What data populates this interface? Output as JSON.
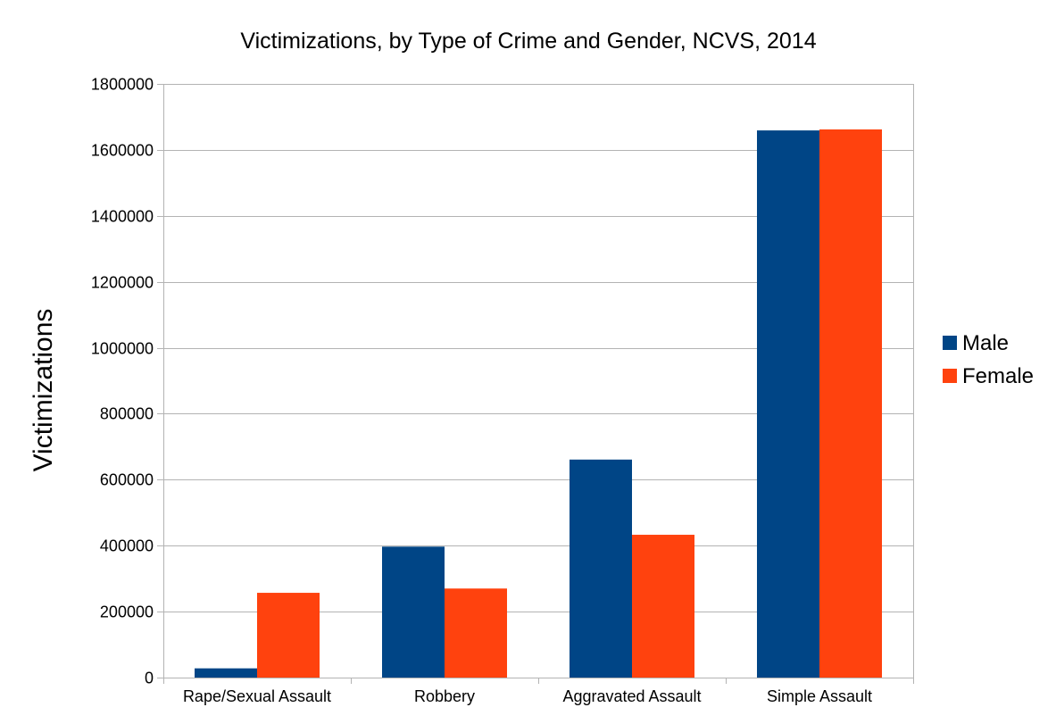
{
  "chart_data": {
    "type": "bar",
    "title": "Victimizations, by Type of Crime and Gender, NCVS, 2014",
    "xlabel": "",
    "ylabel": "Victimizations",
    "ylim": [
      0,
      1800000
    ],
    "yticks": [
      "0",
      "200000",
      "400000",
      "600000",
      "800000",
      "1000000",
      "1200000",
      "1400000",
      "1600000",
      "1800000"
    ],
    "ytick_values": [
      0,
      200000,
      400000,
      600000,
      800000,
      1000000,
      1200000,
      1400000,
      1600000,
      1800000
    ],
    "categories": [
      "Rape/Sexual Assault",
      "Robbery",
      "Aggravated Assault",
      "Simple Assault"
    ],
    "series": [
      {
        "name": "Male",
        "color": "#004586",
        "values": [
          28000,
          397000,
          661000,
          1659000
        ]
      },
      {
        "name": "Female",
        "color": "#ff420e",
        "values": [
          257000,
          270000,
          433000,
          1662000
        ]
      }
    ],
    "grid": true,
    "legend_position": "right"
  }
}
